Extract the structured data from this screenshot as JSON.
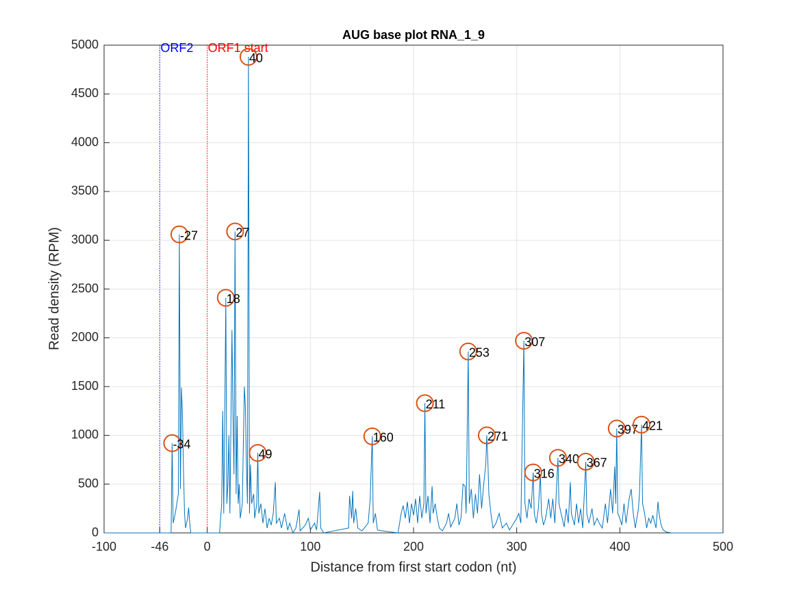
{
  "chart_data": {
    "type": "line",
    "title": "AUG base plot RNA_1_9",
    "x_label": "Distance from first start codon (nt)",
    "y_label": "Read density (RPM)",
    "xlim": [
      -100,
      500
    ],
    "xticks": [
      -100,
      -46,
      0,
      100,
      200,
      300,
      400,
      500
    ],
    "ylim": [
      0,
      5000
    ],
    "yticks": [
      0,
      500,
      1000,
      1500,
      2000,
      2500,
      3000,
      3500,
      4000,
      4500,
      5000
    ],
    "grid": true,
    "markers": [
      {
        "x": -46,
        "label": "ORF2",
        "color": "#0000ff"
      },
      {
        "x": 0,
        "label": "ORF1 start",
        "color": "#ff0000"
      }
    ],
    "x": [
      -100,
      -40,
      -35,
      -34,
      -33,
      -31,
      -28,
      -27,
      -26,
      -25,
      -24,
      -23,
      -22,
      -21,
      -19,
      -18,
      -17,
      -16,
      12,
      14,
      15,
      16,
      17,
      18,
      19,
      20,
      21,
      22,
      24,
      25,
      26,
      27,
      28,
      29,
      30,
      31,
      32,
      34,
      36,
      37,
      38,
      39,
      40,
      41,
      42,
      43,
      45,
      46,
      48,
      49,
      50,
      52,
      54,
      56,
      58,
      60,
      62,
      64,
      66,
      67,
      70,
      72,
      75,
      78,
      80,
      83,
      86,
      89,
      90,
      95,
      98,
      100,
      104,
      106,
      109,
      110,
      113,
      137,
      138,
      140,
      141,
      142,
      144,
      146,
      150,
      156,
      158,
      160,
      161,
      163,
      165,
      170,
      185,
      188,
      190,
      192,
      194,
      196,
      198,
      200,
      202,
      204,
      206,
      208,
      210,
      211,
      212,
      214,
      216,
      218,
      219,
      221,
      223,
      225,
      228,
      232,
      234,
      236,
      240,
      242,
      244,
      246,
      248,
      250,
      251,
      253,
      254,
      256,
      258,
      260,
      262,
      264,
      266,
      268,
      270,
      271,
      272,
      273,
      275,
      277,
      280,
      283,
      286,
      290,
      293,
      296,
      300,
      302,
      304,
      307,
      308,
      310,
      312,
      314,
      316,
      317,
      319,
      321,
      323,
      324,
      326,
      328,
      331,
      333,
      335,
      337,
      340,
      341,
      343,
      346,
      348,
      350,
      352,
      353,
      356,
      358,
      360,
      362,
      364,
      367,
      368,
      370,
      373,
      375,
      378,
      380,
      383,
      386,
      388,
      391,
      393,
      395,
      396,
      397,
      398,
      400,
      402,
      404,
      406,
      409,
      411,
      413,
      415,
      418,
      419,
      421,
      422,
      424,
      426,
      428,
      430,
      432,
      435,
      437,
      438,
      440,
      442,
      445,
      450,
      500
    ],
    "series": [
      {
        "name": "Read density",
        "color": "#0072bd",
        "values": [
          0,
          0,
          0,
          920,
          100,
          200,
          400,
          3060,
          450,
          1490,
          1200,
          650,
          200,
          50,
          150,
          260,
          100,
          0,
          0,
          300,
          1250,
          200,
          1200,
          2410,
          300,
          500,
          1000,
          200,
          2080,
          1200,
          600,
          3090,
          400,
          1200,
          300,
          500,
          150,
          300,
          1500,
          1300,
          700,
          300,
          4880,
          200,
          700,
          300,
          400,
          150,
          300,
          820,
          200,
          300,
          100,
          250,
          50,
          150,
          80,
          200,
          520,
          100,
          150,
          50,
          200,
          30,
          100,
          0,
          50,
          240,
          20,
          80,
          150,
          30,
          100,
          30,
          420,
          50,
          0,
          50,
          380,
          150,
          430,
          100,
          250,
          50,
          20,
          100,
          350,
          990,
          100,
          200,
          30,
          20,
          0,
          200,
          280,
          150,
          320,
          100,
          300,
          180,
          350,
          100,
          380,
          150,
          300,
          1330,
          200,
          380,
          100,
          480,
          200,
          300,
          150,
          50,
          20,
          100,
          200,
          60,
          150,
          300,
          80,
          150,
          500,
          480,
          200,
          1860,
          300,
          450,
          150,
          400,
          200,
          600,
          250,
          500,
          700,
          1000,
          750,
          400,
          200,
          50,
          100,
          200,
          50,
          100,
          30,
          80,
          150,
          200,
          100,
          1970,
          300,
          150,
          350,
          250,
          620,
          200,
          100,
          250,
          600,
          200,
          80,
          150,
          350,
          150,
          350,
          100,
          770,
          300,
          200,
          60,
          250,
          100,
          520,
          200,
          80,
          300,
          100,
          250,
          50,
          730,
          200,
          100,
          250,
          80,
          150,
          100,
          50,
          300,
          100,
          450,
          200,
          680,
          300,
          1070,
          200,
          150,
          80,
          300,
          100,
          350,
          450,
          200,
          50,
          250,
          400,
          1110,
          300,
          200,
          50,
          150,
          100,
          180,
          50,
          320,
          200,
          80,
          30,
          10,
          0,
          0
        ]
      }
    ],
    "peaks": {
      "color": "#d95319",
      "x": [
        -34,
        -27,
        18,
        27,
        40,
        49,
        160,
        211,
        253,
        271,
        307,
        316,
        340,
        367,
        397,
        421
      ],
      "values": [
        920,
        3060,
        2410,
        3090,
        4880,
        820,
        990,
        1330,
        1860,
        1000,
        1970,
        620,
        770,
        730,
        1070,
        1110
      ]
    }
  }
}
